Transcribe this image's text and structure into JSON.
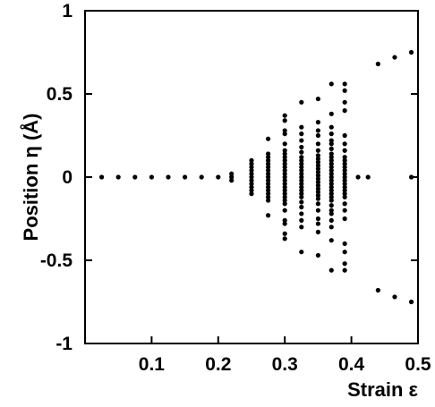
{
  "chart_data": {
    "type": "scatter",
    "title": "",
    "xlabel": "Strain ε",
    "ylabel": "Position η (Å)",
    "xlim": [
      0,
      0.5
    ],
    "ylim": [
      -1,
      1
    ],
    "xticks": [
      "0.1",
      "0.2",
      "0.3",
      "0.4",
      "0.5"
    ],
    "xtick_values": [
      0.1,
      0.2,
      0.3,
      0.4,
      0.5
    ],
    "yticks": [
      "1",
      "0.5",
      "0",
      "-0.5",
      "-1"
    ],
    "ytick_values": [
      1,
      0.5,
      0,
      -0.5,
      -1
    ],
    "grid": false,
    "legend": "none",
    "marker_color": "#000000",
    "series": [
      {
        "columns": [
          {
            "x": 0.025,
            "y": [
              0
            ]
          },
          {
            "x": 0.05,
            "y": [
              0
            ]
          },
          {
            "x": 0.075,
            "y": [
              0
            ]
          },
          {
            "x": 0.1,
            "y": [
              0
            ]
          },
          {
            "x": 0.125,
            "y": [
              0
            ]
          },
          {
            "x": 0.15,
            "y": [
              0
            ]
          },
          {
            "x": 0.175,
            "y": [
              0
            ]
          },
          {
            "x": 0.2,
            "y": [
              0
            ]
          },
          {
            "x": 0.22,
            "y": [
              -0.02,
              0,
              0.02
            ]
          },
          {
            "x": 0.25,
            "y": [
              -0.1,
              -0.08,
              -0.06,
              -0.04,
              -0.02,
              0,
              0.02,
              0.04,
              0.06,
              0.08,
              0.1
            ]
          },
          {
            "x": 0.275,
            "y": [
              -0.23,
              -0.14,
              -0.12,
              -0.1,
              -0.08,
              -0.06,
              -0.04,
              -0.02,
              0,
              0.02,
              0.04,
              0.06,
              0.08,
              0.1,
              0.12,
              0.14,
              0.23
            ]
          },
          {
            "x": 0.3,
            "y": [
              -0.37,
              -0.34,
              -0.28,
              -0.26,
              -0.2,
              -0.16,
              -0.14,
              -0.12,
              -0.1,
              -0.08,
              -0.06,
              -0.04,
              -0.02,
              0,
              0.02,
              0.04,
              0.06,
              0.08,
              0.1,
              0.12,
              0.14,
              0.16,
              0.2,
              0.26,
              0.28,
              0.34,
              0.37
            ]
          },
          {
            "x": 0.325,
            "y": [
              -0.45,
              -0.3,
              -0.26,
              -0.22,
              -0.18,
              -0.15,
              -0.12,
              -0.1,
              -0.08,
              -0.06,
              -0.04,
              -0.02,
              0,
              0.02,
              0.04,
              0.06,
              0.08,
              0.1,
              0.12,
              0.15,
              0.18,
              0.22,
              0.26,
              0.3,
              0.45
            ]
          },
          {
            "x": 0.35,
            "y": [
              -0.47,
              -0.33,
              -0.28,
              -0.25,
              -0.2,
              -0.16,
              -0.13,
              -0.11,
              -0.09,
              -0.07,
              -0.05,
              -0.03,
              -0.01,
              0.01,
              0.03,
              0.05,
              0.07,
              0.09,
              0.11,
              0.13,
              0.16,
              0.2,
              0.25,
              0.28,
              0.33,
              0.47
            ]
          },
          {
            "x": 0.37,
            "y": [
              -0.56,
              -0.38,
              -0.3,
              -0.26,
              -0.22,
              -0.2,
              -0.17,
              -0.14,
              -0.12,
              -0.1,
              -0.08,
              -0.06,
              -0.04,
              -0.02,
              0,
              0.02,
              0.04,
              0.06,
              0.08,
              0.1,
              0.12,
              0.14,
              0.17,
              0.2,
              0.22,
              0.26,
              0.3,
              0.38,
              0.56
            ]
          },
          {
            "x": 0.39,
            "y": [
              -0.56,
              -0.52,
              -0.45,
              -0.4,
              -0.25,
              -0.2,
              -0.16,
              -0.12,
              -0.1,
              -0.08,
              -0.06,
              -0.04,
              -0.02,
              0,
              0.02,
              0.04,
              0.06,
              0.08,
              0.1,
              0.12,
              0.16,
              0.2,
              0.25,
              0.4,
              0.45,
              0.52,
              0.56
            ]
          },
          {
            "x": 0.41,
            "y": [
              0
            ]
          },
          {
            "x": 0.425,
            "y": [
              0
            ]
          },
          {
            "x": 0.44,
            "y": [
              -0.68,
              0.68
            ]
          },
          {
            "x": 0.465,
            "y": [
              -0.72,
              0.72
            ]
          },
          {
            "x": 0.49,
            "y": [
              -0.75,
              0,
              0.75
            ]
          }
        ]
      }
    ]
  }
}
